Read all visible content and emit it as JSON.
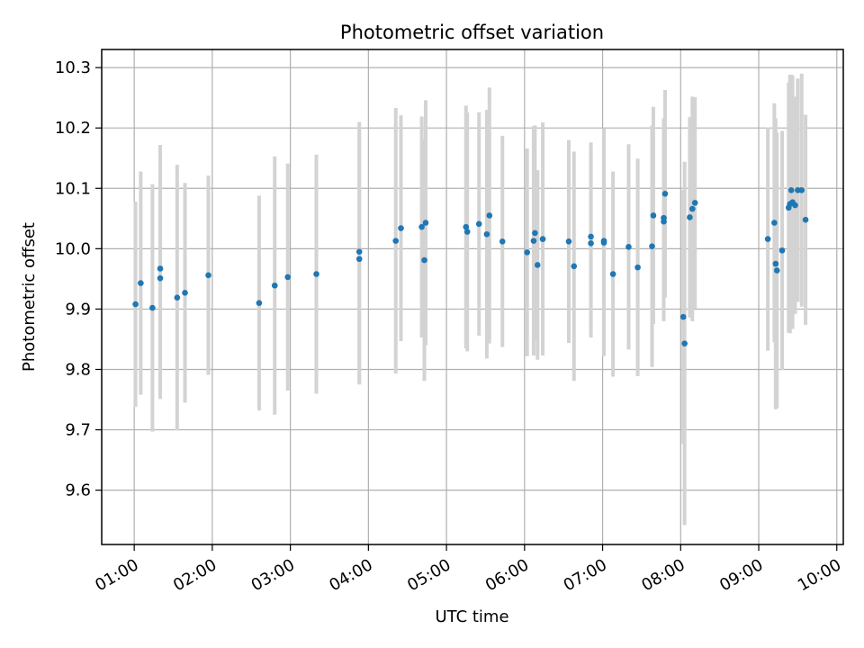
{
  "chart_data": {
    "type": "scatter",
    "title": "Photometric offset variation",
    "xlabel": "UTC time",
    "ylabel": "Photometric offset",
    "x_ticks": [
      "01:00",
      "02:00",
      "03:00",
      "04:00",
      "05:00",
      "06:00",
      "07:00",
      "08:00",
      "09:00",
      "10:00"
    ],
    "y_ticks": [
      "9.6",
      "9.7",
      "9.8",
      "9.9",
      "10.0",
      "10.1",
      "10.2",
      "10.3"
    ],
    "xlim": [
      "00:35",
      "10:05"
    ],
    "ylim": [
      9.51,
      10.33
    ],
    "grid": true,
    "colors": {
      "points": "#1f77b4",
      "error_bars": "#d3d3d3",
      "grid": "#b0b0b0"
    },
    "series": [
      {
        "x": [
          "01:01",
          "01:05",
          "01:14",
          "01:20",
          "01:20",
          "01:33",
          "01:39",
          "01:57",
          "02:36",
          "02:48",
          "02:58",
          "03:20",
          "03:53",
          "03:53",
          "04:21",
          "04:25",
          "04:41",
          "04:43",
          "04:44",
          "05:15",
          "05:16",
          "05:25",
          "05:31",
          "05:33",
          "05:43",
          "06:02",
          "06:07",
          "06:08",
          "06:10",
          "06:14",
          "06:34",
          "06:38",
          "06:51",
          "06:51",
          "07:01",
          "07:01",
          "07:08",
          "07:20",
          "07:27",
          "07:38",
          "07:39",
          "07:47",
          "07:47",
          "07:48",
          "08:02",
          "08:03",
          "08:07",
          "08:09",
          "08:11",
          "09:07",
          "09:12",
          "09:13",
          "09:14",
          "09:18",
          "09:23",
          "09:24",
          "09:25",
          "09:26",
          "09:28",
          "09:30",
          "09:33",
          "09:36"
        ],
        "y": [
          9.908,
          9.943,
          9.902,
          9.967,
          9.951,
          9.919,
          9.927,
          9.956,
          9.91,
          9.939,
          9.953,
          9.958,
          9.995,
          9.983,
          10.013,
          10.034,
          10.036,
          9.981,
          10.043,
          10.036,
          10.028,
          10.041,
          10.024,
          10.055,
          10.012,
          9.994,
          10.013,
          10.026,
          9.973,
          10.016,
          10.012,
          9.971,
          10.009,
          10.02,
          10.01,
          10.013,
          9.958,
          10.003,
          9.969,
          10.004,
          10.055,
          10.045,
          10.051,
          10.091,
          9.887,
          9.843,
          10.052,
          10.066,
          10.076,
          10.016,
          10.043,
          9.975,
          9.964,
          9.997,
          10.068,
          10.074,
          10.097,
          10.077,
          10.072,
          10.097,
          10.097,
          10.048
        ],
        "err": [
          0.17,
          0.185,
          0.205,
          0.205,
          0.2,
          0.22,
          0.182,
          0.165,
          0.178,
          0.214,
          0.188,
          0.198,
          0.215,
          0.208,
          0.22,
          0.187,
          0.183,
          0.2,
          0.203,
          0.201,
          0.198,
          0.185,
          0.206,
          0.212,
          0.175,
          0.172,
          0.19,
          0.178,
          0.157,
          0.193,
          0.168,
          0.19,
          0.156,
          0.156,
          0.188,
          0.187,
          0.17,
          0.17,
          0.18,
          0.2,
          0.18,
          0.165,
          0.165,
          0.172,
          0.21,
          0.301,
          0.166,
          0.186,
          0.175,
          0.185,
          0.198,
          0.241,
          0.228,
          0.198,
          0.207,
          0.214,
          0.191,
          0.21,
          0.18,
          0.185,
          0.193,
          0.174
        ]
      }
    ]
  }
}
